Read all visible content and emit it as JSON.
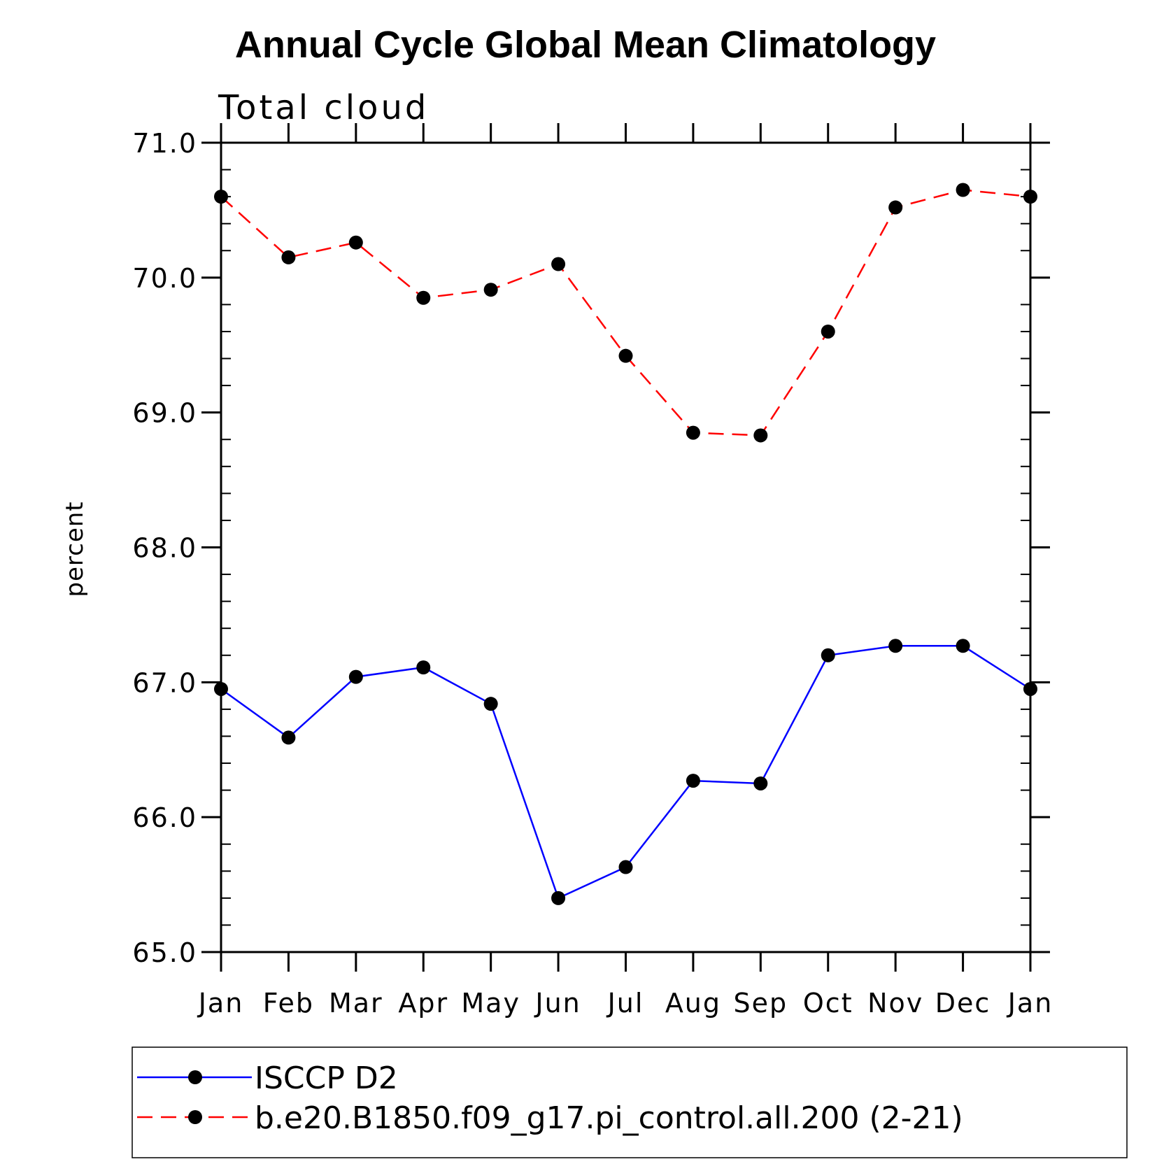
{
  "chart_data": {
    "type": "line",
    "title": "Annual Cycle Global Mean Climatology",
    "subtitle": "Total cloud",
    "ylabel": "percent",
    "xlabel": "",
    "categories": [
      "Jan",
      "Feb",
      "Mar",
      "Apr",
      "May",
      "Jun",
      "Jul",
      "Aug",
      "Sep",
      "Oct",
      "Nov",
      "Dec",
      "Jan"
    ],
    "ylim": [
      65.0,
      71.0
    ],
    "yticks": [
      "65.0",
      "66.0",
      "67.0",
      "68.0",
      "69.0",
      "70.0",
      "71.0"
    ],
    "grid": false,
    "legend_position": "bottom",
    "series": [
      {
        "name": "ISCCP D2",
        "color": "#0000ff",
        "style": "solid",
        "marker": "filled-circle",
        "values": [
          66.95,
          66.59,
          67.04,
          67.11,
          66.84,
          65.4,
          65.63,
          66.27,
          66.25,
          67.2,
          67.27,
          67.27,
          66.95
        ]
      },
      {
        "name": "b.e20.B1850.f09_g17.pi_control.all.200 (2-21)",
        "color": "#ff0000",
        "style": "dashed",
        "marker": "filled-circle",
        "values": [
          70.6,
          70.15,
          70.26,
          69.85,
          69.91,
          70.1,
          69.42,
          68.85,
          68.83,
          69.6,
          70.52,
          70.65,
          70.6
        ]
      }
    ]
  }
}
